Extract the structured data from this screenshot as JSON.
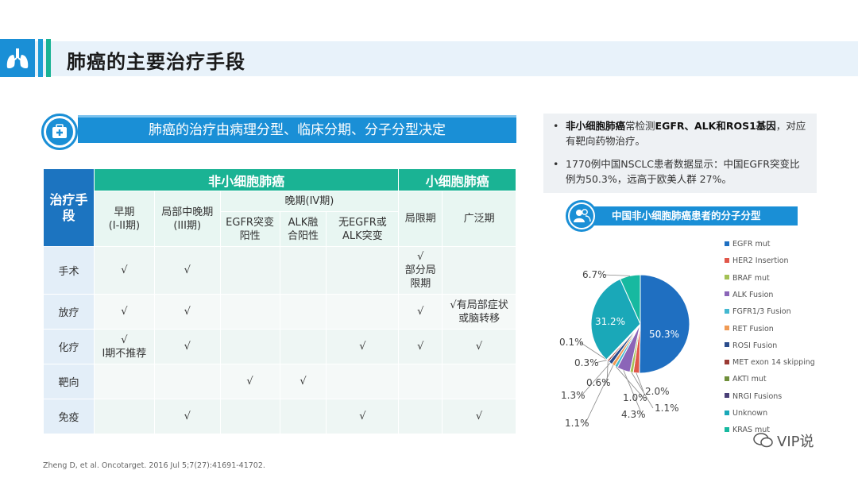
{
  "header": {
    "title": "肺癌的主要治疗手段"
  },
  "section": {
    "banner": "肺癌的治疗由病理分型、临床分期、分子分型决定"
  },
  "table": {
    "corner": "治疗手段",
    "nsclc": "非小细胞肺癌",
    "sclc": "小细胞肺癌",
    "late_stage": "晚期(IV期)",
    "cols": {
      "early": "早期\n(I-II期)",
      "mid": "局部中晚期\n(III期)",
      "egfr": "EGFR突变\n阳性",
      "alk": "ALK融\n合阳性",
      "none": "无EGFR或\nALK突变",
      "limited": "局限期",
      "extensive": "广泛期"
    },
    "rows": [
      {
        "label": "手术",
        "early": "√",
        "mid": "√",
        "egfr": "",
        "alk": "",
        "none": "",
        "limited": "√\n部分局\n限期",
        "extensive": ""
      },
      {
        "label": "放疗",
        "early": "√",
        "mid": "√",
        "egfr": "",
        "alk": "",
        "none": "",
        "limited": "√",
        "extensive": "√有局部症状\n或脑转移"
      },
      {
        "label": "化疗",
        "early": "√\nI期不推荐",
        "mid": "√",
        "egfr": "",
        "alk": "",
        "none": "√",
        "limited": "√",
        "extensive": "√"
      },
      {
        "label": "靶向",
        "early": "",
        "mid": "",
        "egfr": "√",
        "alk": "√",
        "none": "",
        "limited": "",
        "extensive": ""
      },
      {
        "label": "免疫",
        "early": "",
        "mid": "√",
        "egfr": "",
        "alk": "",
        "none": "√",
        "limited": "",
        "extensive": "√"
      }
    ]
  },
  "bullets": {
    "b1_bold": "非小细胞肺癌",
    "b1_mid": "常检测",
    "b1_bold2": "EGFR、ALK和ROS1基因",
    "b1_end": "，对应有靶向药物治疗。",
    "b2": "1770例中国NSCLC患者数据显示：中国EGFR突变比例为50.3%，远高于欧美人群 27%。"
  },
  "pie_title": "中国非小细胞肺癌患者的分子分型",
  "chart_data": {
    "type": "pie",
    "title": "中国非小细胞肺癌患者的分子分型",
    "labels": [
      "EGFR mut",
      "HER2 Insertion",
      "BRAF mut",
      "ALK Fusion",
      "FGFR1/3 Fusion",
      "RET Fusion",
      "ROSI Fusion",
      "MET exon 14 skipping",
      "AKTI mut",
      "NRGI Fusions",
      "Unknown",
      "KRAS mut"
    ],
    "values": [
      50.3,
      2.0,
      1.1,
      4.3,
      1.0,
      1.1,
      1.3,
      0.6,
      0.3,
      0.1,
      31.2,
      6.7
    ],
    "value_labels": [
      "50.3%",
      "2.0%",
      "1.1%",
      "4.3%",
      "1.0%",
      "1.1%",
      "1.3%",
      "0.6%",
      "0.3%",
      "0.1%",
      "31.2%",
      "6.7%"
    ],
    "colors": [
      "#1f6fc1",
      "#e1574a",
      "#a4c155",
      "#8b65b8",
      "#43b8d0",
      "#f09a54",
      "#2b4c8c",
      "#9b3a34",
      "#6f8f3a",
      "#4a3f77",
      "#1aa8b8",
      "#17b9a0"
    ],
    "legend_position": "right",
    "legend_visible": [
      "EGFR mut",
      "HER2 Insertion",
      "BRAF mut",
      "ALK Fusion",
      "FGFR1/3 Fusion",
      "RET Fusion",
      "ROSI Fusion",
      "MET exon 14 skipping",
      "AKTI mut",
      "NRGI Fusions",
      "Unknown",
      "KRAS mut"
    ]
  },
  "footer": "Zheng D, et al. Oncotarget. 2016 Jul 5;7(27):41691-41702.",
  "watermark": "VIP说"
}
